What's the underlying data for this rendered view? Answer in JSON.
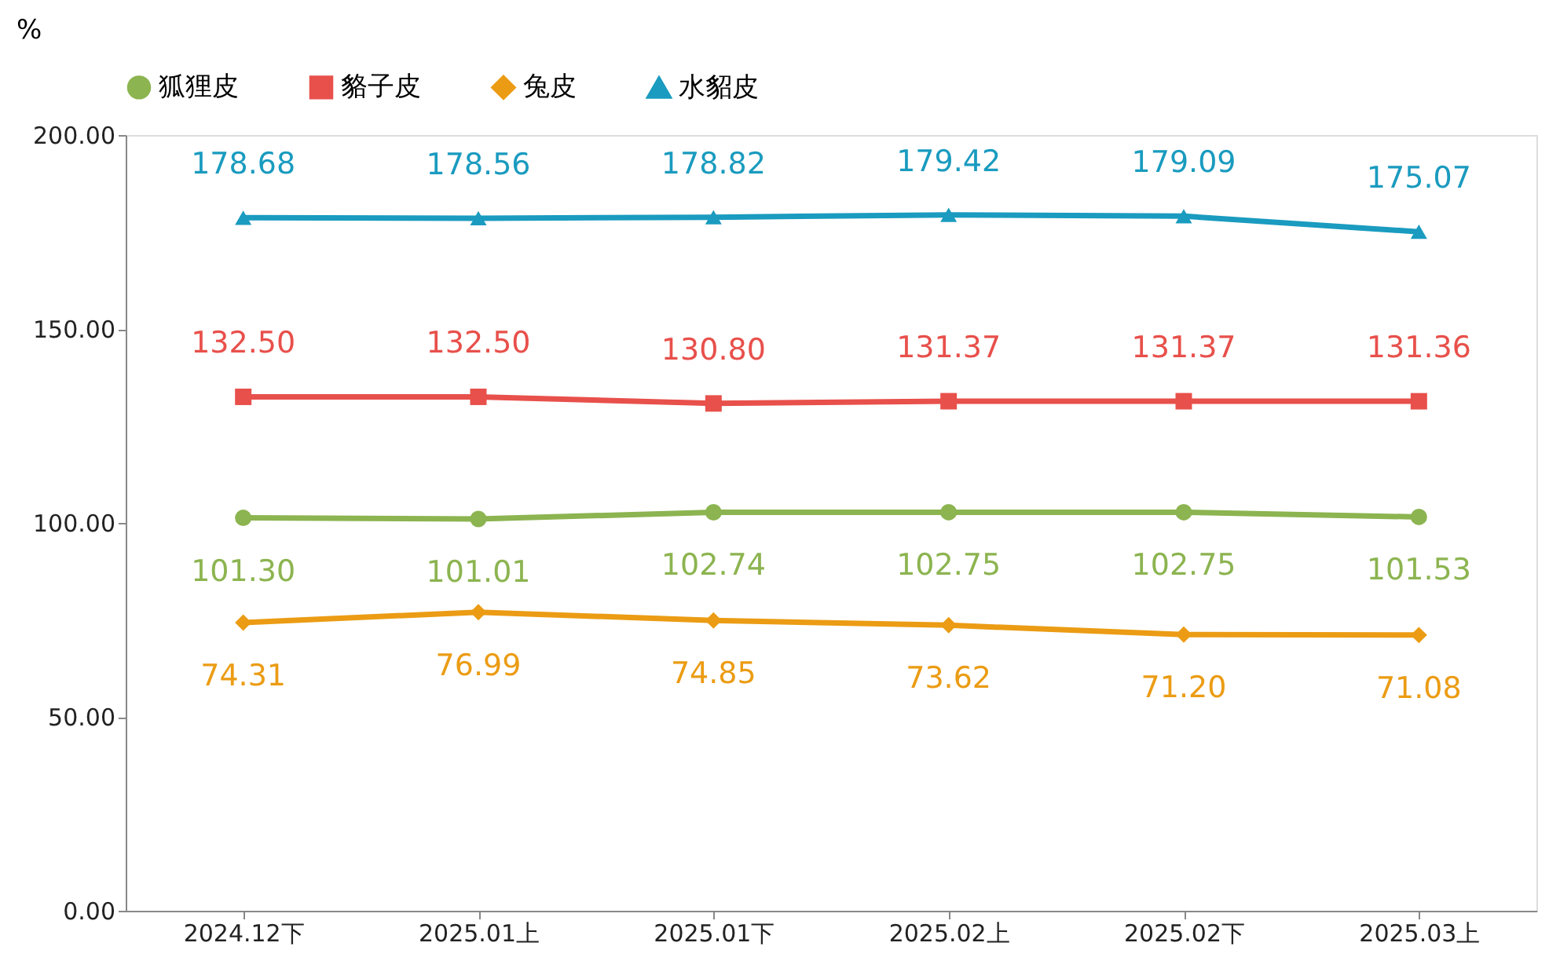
{
  "chart_data": {
    "type": "line",
    "ylabel": "%",
    "categories": [
      "2024.12下",
      "2025.01上",
      "2025.01下",
      "2025.02上",
      "2025.02下",
      "2025.03上"
    ],
    "series": [
      {
        "name": "狐狸皮",
        "color": "#8cb450",
        "marker": "circle",
        "values": [
          101.3,
          101.01,
          102.74,
          102.75,
          102.75,
          101.53
        ],
        "value_labels": [
          "101.30",
          "101.01",
          "102.74",
          "102.75",
          "102.75",
          "101.53"
        ]
      },
      {
        "name": "貉子皮",
        "color": "#e8504b",
        "marker": "square",
        "values": [
          132.5,
          132.5,
          130.8,
          131.37,
          131.37,
          131.36
        ],
        "value_labels": [
          "132.50",
          "132.50",
          "130.80",
          "131.37",
          "131.37",
          "131.36"
        ]
      },
      {
        "name": "兔皮",
        "color": "#eb9c14",
        "marker": "diamond",
        "values": [
          74.31,
          76.99,
          74.85,
          73.62,
          71.2,
          71.08
        ],
        "value_labels": [
          "74.31",
          "76.99",
          "74.85",
          "73.62",
          "71.20",
          "71.08"
        ]
      },
      {
        "name": "水貂皮",
        "color": "#1a9bbf",
        "marker": "triangle",
        "values": [
          178.68,
          178.56,
          178.82,
          179.42,
          179.09,
          175.07
        ],
        "value_labels": [
          "178.68",
          "178.56",
          "178.82",
          "179.42",
          "179.09",
          "175.07"
        ]
      }
    ],
    "ylim": [
      0,
      200
    ],
    "yticks": [
      {
        "value": 0,
        "label": "0.00"
      },
      {
        "value": 50,
        "label": "50.00"
      },
      {
        "value": 100,
        "label": "100.00"
      },
      {
        "value": 150,
        "label": "150.00"
      },
      {
        "value": 200,
        "label": "200.00"
      }
    ],
    "grid": false,
    "legend": "top",
    "line_style": "solid"
  }
}
